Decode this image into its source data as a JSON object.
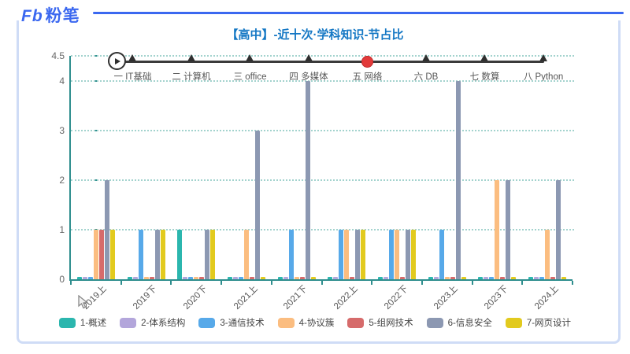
{
  "header": {
    "logo_mark": "Fb",
    "logo_cn": "粉笔",
    "title": "【高中】-近十次·学科知识-节占比"
  },
  "timeline": {
    "stations": [
      {
        "label": "一 IT基础"
      },
      {
        "label": "二 计算机"
      },
      {
        "label": "三 office"
      },
      {
        "label": "四 多媒体"
      },
      {
        "label": "五 网络"
      },
      {
        "label": "六 DB"
      },
      {
        "label": "七 数算"
      },
      {
        "label": "八 Python"
      }
    ],
    "active_index": 4,
    "active_color": "#e23a3a",
    "line_color": "#3a3a3a"
  },
  "chart_data": {
    "type": "bar",
    "title": "【高中】-近十次·学科知识-节占比",
    "xlabel": "",
    "ylabel": "",
    "ylim": [
      0,
      4.5
    ],
    "yticks": [
      0,
      1,
      2,
      3,
      4,
      4.5
    ],
    "grid": "horizontal-dotted",
    "legend_position": "bottom",
    "axis_color": "#2f8e8e",
    "categories": [
      "2019上",
      "2019下",
      "2020下",
      "2021上",
      "2021下",
      "2022上",
      "2022下",
      "2023上",
      "2023下",
      "2024上"
    ],
    "series": [
      {
        "name": "1-概述",
        "color": "#2bb6ae",
        "values": [
          0.05,
          0.05,
          1,
          0.05,
          0.05,
          0.05,
          0.05,
          0.05,
          0.05,
          0.05
        ]
      },
      {
        "name": "2-体系结构",
        "color": "#b3a6db",
        "values": [
          0.05,
          0.05,
          0.05,
          0.05,
          0.05,
          0.05,
          0.05,
          0.05,
          0.05,
          0.05
        ]
      },
      {
        "name": "3-通信技术",
        "color": "#57a9e9",
        "values": [
          0.05,
          1,
          0.05,
          0.05,
          1,
          1,
          1,
          1,
          0.05,
          0.05
        ]
      },
      {
        "name": "4-协议簇",
        "color": "#fbbd80",
        "values": [
          1,
          0.05,
          0.05,
          1,
          0.05,
          1,
          1,
          0.05,
          2,
          1
        ]
      },
      {
        "name": "5-组网技术",
        "color": "#d66b6b",
        "values": [
          1,
          0.05,
          0.05,
          0.05,
          0.05,
          0.05,
          0.05,
          0.05,
          0.05,
          0.05
        ]
      },
      {
        "name": "6-信息安全",
        "color": "#8c98b2",
        "values": [
          2,
          1,
          1,
          3,
          4,
          1,
          1,
          4,
          2,
          2
        ]
      },
      {
        "name": "7-网页设计",
        "color": "#e2ca1e",
        "values": [
          1,
          1,
          1,
          0.05,
          0.05,
          1,
          1,
          0.05,
          0.05,
          0.05
        ]
      }
    ]
  }
}
